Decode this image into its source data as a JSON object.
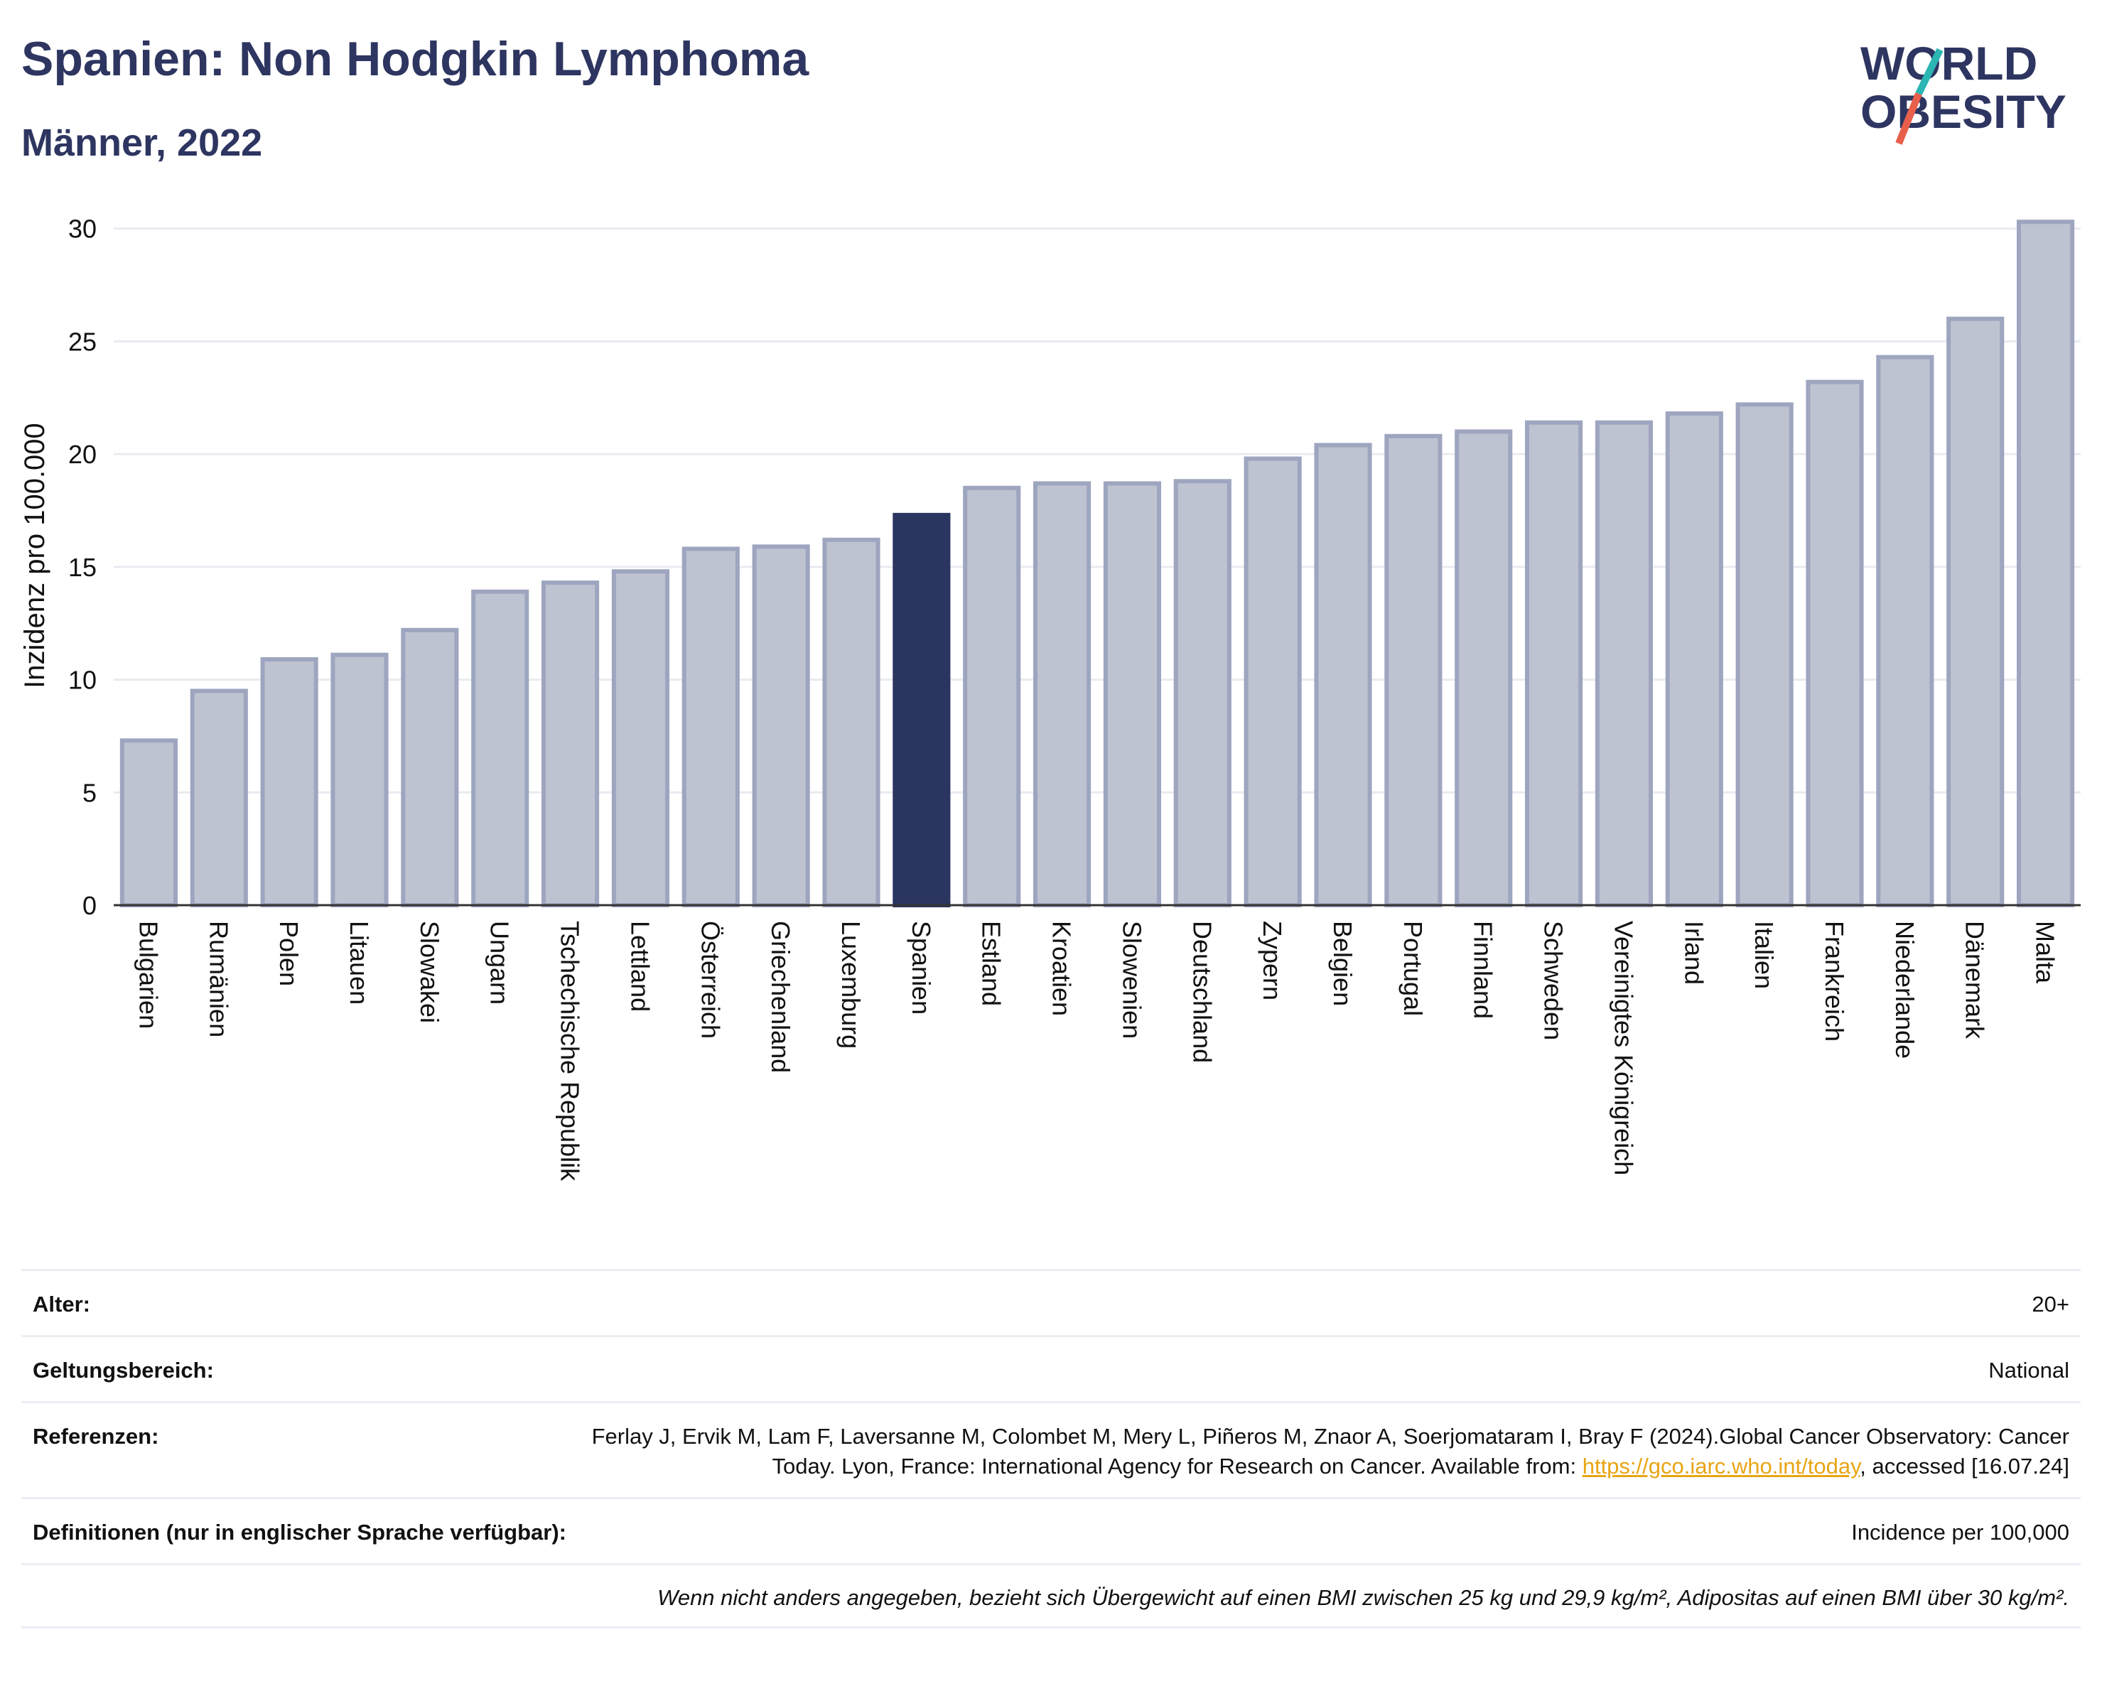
{
  "header": {
    "title": "Spanien: Non Hodgkin Lymphoma",
    "subtitle": "Männer, 2022"
  },
  "logo": {
    "line1": "WORLD",
    "line2": "OBESITY",
    "icon": "world-obesity-logo"
  },
  "colors": {
    "highlight": "#2a3560",
    "bar": "#bec3d1",
    "bar_border": "#9ea5bf",
    "accent_orange": "#e8a514"
  },
  "chart_data": {
    "type": "bar",
    "title": "Spanien: Non Hodgkin Lymphoma",
    "subtitle": "Männer, 2022",
    "xlabel": "",
    "ylabel": "Inzidenz pro 100.000",
    "ylim": [
      0,
      31
    ],
    "yticks": [
      0,
      5,
      10,
      15,
      20,
      25,
      30
    ],
    "grid": true,
    "highlight": "Spanien",
    "categories": [
      "Bulgarien",
      "Rumänien",
      "Polen",
      "Litauen",
      "Slowakei",
      "Ungarn",
      "Tschechische Republik",
      "Lettland",
      "Österreich",
      "Griechenland",
      "Luxemburg",
      "Spanien",
      "Estland",
      "Kroatien",
      "Slowenien",
      "Deutschland",
      "Zypern",
      "Belgien",
      "Portugal",
      "Finnland",
      "Schweden",
      "Vereinigtes Königreich",
      "Irland",
      "Italien",
      "Frankreich",
      "Niederlande",
      "Dänemark",
      "Malta"
    ],
    "values": [
      7.3,
      9.5,
      10.9,
      11.1,
      12.2,
      13.9,
      14.3,
      14.8,
      15.8,
      15.9,
      16.2,
      17.3,
      18.5,
      18.7,
      18.7,
      18.8,
      19.8,
      20.4,
      20.8,
      21.0,
      21.4,
      21.4,
      21.8,
      22.2,
      23.2,
      24.3,
      26.0,
      30.3
    ]
  },
  "meta": {
    "rows": [
      {
        "label": "Alter:",
        "value": "20+"
      },
      {
        "label": "Geltungsbereich:",
        "value": "National"
      }
    ],
    "references": {
      "label": "Referenzen:",
      "text1": "Ferlay J, Ervik M, Lam F, Laversanne M, Colombet M, Mery L, Piñeros M, Znaor A, Soerjomataram I, Bray F (2024).Global Cancer Observatory: Cancer Today. Lyon, France: International Agency for Research on Cancer. Available from: ",
      "link": "https://gco.iarc.who.int/today",
      "text2": ", accessed [16.07.24]"
    },
    "definitions": {
      "label": "Definitionen (nur in englischer Sprache verfügbar):",
      "value": "Incidence per 100,000"
    },
    "note": "Wenn nicht anders angegeben, bezieht sich Übergewicht auf einen BMI zwischen 25 kg und 29,9 kg/m², Adipositas auf einen BMI über 30 kg/m²."
  }
}
